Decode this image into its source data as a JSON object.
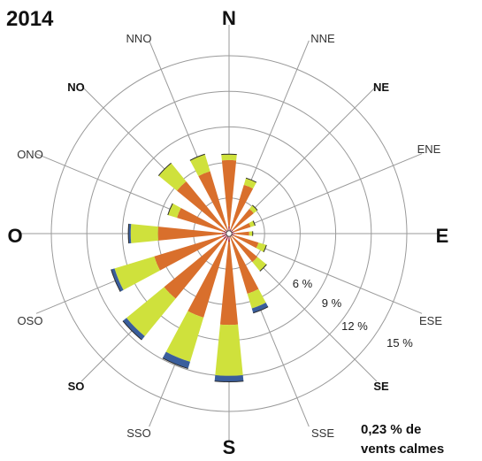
{
  "title": "2014",
  "calm_note": {
    "line1": "0,23 % de",
    "line2": "vents calmes"
  },
  "colors": {
    "bin1": "#a01028",
    "bin2": "#d96f2c",
    "bin3": "#cfe13c",
    "bin4": "#3a5e9c",
    "grid": "#9a9a9a",
    "bar_outline": "#2a2a2a"
  },
  "chart_data": {
    "type": "wind-rose",
    "title": "2014",
    "rings": [
      3,
      6,
      9,
      12,
      15
    ],
    "ring_labels": [
      "6 %",
      "9 %",
      "12 %",
      "15 %"
    ],
    "unit": "%",
    "directions": [
      "N",
      "NNE",
      "NE",
      "ENE",
      "E",
      "ESE",
      "SE",
      "SSE",
      "S",
      "SSO",
      "SO",
      "OSO",
      "O",
      "ONO",
      "NO",
      "NNO"
    ],
    "major_directions": [
      "N",
      "E",
      "S",
      "O"
    ],
    "bold_directions": [
      "NE",
      "SE",
      "SO",
      "NO"
    ],
    "light_directions": [
      "NNE",
      "ENE",
      "ESE",
      "SSE",
      "SSO",
      "OSO",
      "ONO",
      "NNO"
    ],
    "series": [
      {
        "values": [
          0.6,
          0.4,
          0.4,
          0.4,
          0.5,
          0.4,
          0.3,
          0.3,
          0.7,
          0.6,
          0.6,
          0.6,
          0.6,
          0.5,
          0.4,
          0.3
        ]
      },
      {
        "values": [
          5.6,
          3.9,
          2.3,
          1.5,
          1.2,
          2.2,
          2.8,
          5.0,
          7.0,
          6.8,
          6.5,
          6.0,
          5.4,
          4.1,
          5.3,
          5.2
        ]
      },
      {
        "values": [
          0.5,
          0.6,
          0.4,
          0.4,
          0.3,
          0.7,
          1.0,
          1.3,
          4.3,
          3.9,
          4.1,
          3.5,
          2.3,
          0.8,
          2.0,
          1.5
        ]
      },
      {
        "values": [
          0.0,
          0.0,
          0.0,
          0.0,
          0.0,
          0.0,
          0.0,
          0.4,
          0.5,
          0.6,
          0.4,
          0.3,
          0.2,
          0.0,
          0.0,
          0.0
        ]
      }
    ],
    "grid": true,
    "legend": "none"
  }
}
